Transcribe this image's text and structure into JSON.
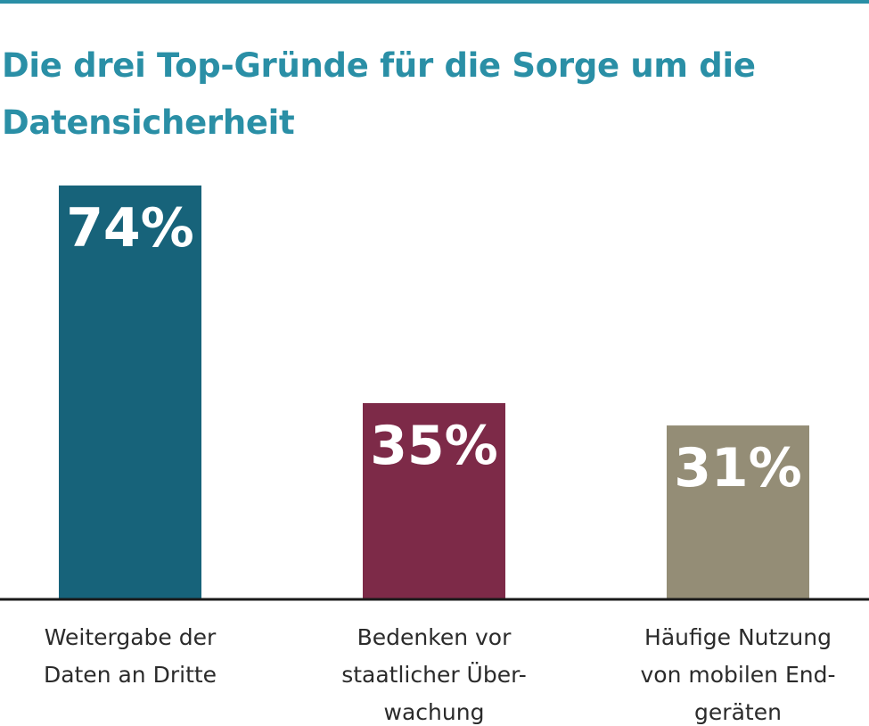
{
  "chart_data": {
    "type": "bar",
    "title": "Die drei Top-Gründe für die Sorge um die Datensicherheit",
    "categories": [
      "Weitergabe der Daten an Dritte",
      "Bedenken vor staatlicher Über-wachung",
      "Häufige Nutzung von mobilen End-geräten"
    ],
    "category_lines": [
      [
        "Weitergabe der",
        "Daten an Dritte"
      ],
      [
        "Bedenken vor",
        "staatlicher Über-",
        "wachung"
      ],
      [
        "Häufige Nutzung",
        "von mobilen End-",
        "geräten"
      ]
    ],
    "values": [
      74,
      35,
      31
    ],
    "value_labels": [
      "74%",
      "35%",
      "31%"
    ],
    "unit": "%",
    "colors": [
      "#17637a",
      "#7d2a48",
      "#948d76"
    ],
    "ylim": [
      0,
      74
    ],
    "grid": false,
    "legend": "none"
  },
  "theme": {
    "accent": "#2a8fa6",
    "axis_color": "#1a1a1a",
    "text_color": "#2b2b2b"
  }
}
